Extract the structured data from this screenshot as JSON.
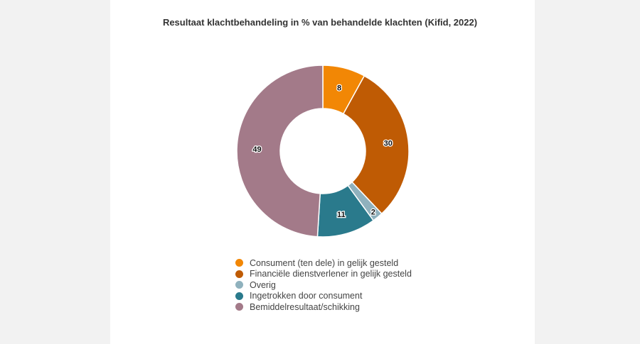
{
  "chart_data": {
    "type": "pie",
    "title": "Resultaat klachtbehandeling in % van behandelde klachten (Kifid, 2022)",
    "donut": true,
    "legend_position": "bottom",
    "series": [
      {
        "name": "Consument (ten dele) in gelijk gesteld",
        "value": 8,
        "color": "#f28705"
      },
      {
        "name": "Financiële dienstverlener in gelijk gesteld",
        "value": 30,
        "color": "#bf5b04"
      },
      {
        "name": "Overig",
        "value": 2,
        "color": "#8fb1bd"
      },
      {
        "name": "Ingetrokken door consument",
        "value": 11,
        "color": "#2a7a8c"
      },
      {
        "name": "Bemiddelresultaat/schikking",
        "value": 49,
        "color": "#a37a89"
      }
    ]
  }
}
